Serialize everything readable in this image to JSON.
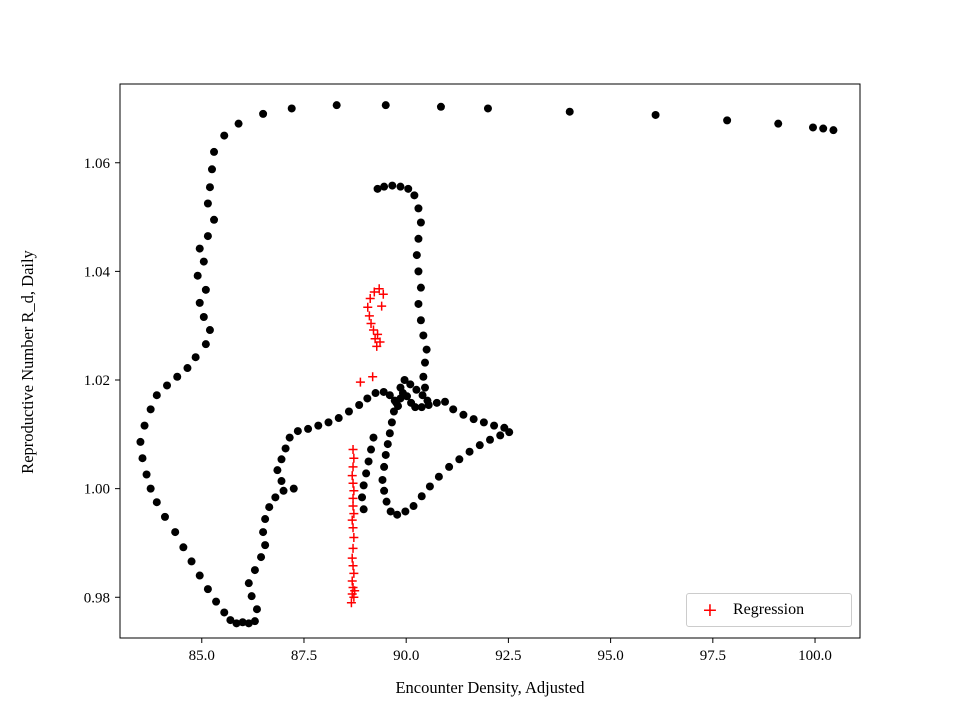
{
  "figure": {
    "background": "#ffffff"
  },
  "chart_data": {
    "type": "scatter",
    "title": "",
    "xlabel": "Encounter Density, Adjusted",
    "ylabel": "Reproductive Number R_d, Daily",
    "xlim": [
      83.0,
      101.1
    ],
    "ylim": [
      0.9725,
      1.0745
    ],
    "xticks": [
      85.0,
      87.5,
      90.0,
      92.5,
      95.0,
      97.5,
      100.0
    ],
    "xtick_labels": [
      "85.0",
      "87.5",
      "90.0",
      "92.5",
      "95.0",
      "97.5",
      "100.0"
    ],
    "yticks": [
      0.98,
      1.0,
      1.02,
      1.04,
      1.06
    ],
    "ytick_labels": [
      "0.98",
      "1.00",
      "1.02",
      "1.04",
      "1.06"
    ],
    "grid": false,
    "legend": {
      "position": "lower right",
      "entries": [
        "Regression"
      ]
    },
    "series": [
      {
        "name": "",
        "marker": "circle",
        "color": "#000000",
        "points": [
          [
            85.3,
            1.062
          ],
          [
            85.55,
            1.065
          ],
          [
            85.9,
            1.0672
          ],
          [
            86.5,
            1.069
          ],
          [
            87.2,
            1.07
          ],
          [
            88.3,
            1.0706
          ],
          [
            89.5,
            1.0706
          ],
          [
            90.85,
            1.0703
          ],
          [
            92.0,
            1.07
          ],
          [
            94.0,
            1.0694
          ],
          [
            96.1,
            1.0688
          ],
          [
            97.85,
            1.0678
          ],
          [
            99.1,
            1.0672
          ],
          [
            99.95,
            1.0665
          ],
          [
            100.2,
            1.0663
          ],
          [
            100.45,
            1.066
          ],
          [
            85.25,
            1.0588
          ],
          [
            85.2,
            1.0555
          ],
          [
            85.15,
            1.0525
          ],
          [
            85.3,
            1.0495
          ],
          [
            85.15,
            1.0465
          ],
          [
            84.95,
            1.0442
          ],
          [
            85.05,
            1.0418
          ],
          [
            84.9,
            1.0392
          ],
          [
            85.1,
            1.0366
          ],
          [
            84.95,
            1.0342
          ],
          [
            85.05,
            1.0316
          ],
          [
            85.2,
            1.0292
          ],
          [
            85.1,
            1.0266
          ],
          [
            84.85,
            1.0242
          ],
          [
            84.65,
            1.0222
          ],
          [
            84.4,
            1.0206
          ],
          [
            84.15,
            1.019
          ],
          [
            83.9,
            1.0172
          ],
          [
            83.75,
            1.0146
          ],
          [
            83.6,
            1.0116
          ],
          [
            83.5,
            1.0086
          ],
          [
            83.55,
            1.0056
          ],
          [
            83.65,
            1.0026
          ],
          [
            83.75,
            1.0
          ],
          [
            83.9,
            0.9975
          ],
          [
            84.1,
            0.9948
          ],
          [
            84.35,
            0.992
          ],
          [
            84.55,
            0.9892
          ],
          [
            84.75,
            0.9866
          ],
          [
            84.95,
            0.984
          ],
          [
            85.15,
            0.9815
          ],
          [
            85.35,
            0.9792
          ],
          [
            85.55,
            0.9772
          ],
          [
            85.7,
            0.9758
          ],
          [
            85.85,
            0.9752
          ],
          [
            86.0,
            0.9754
          ],
          [
            86.15,
            0.9752
          ],
          [
            86.3,
            0.9756
          ],
          [
            86.35,
            0.9778
          ],
          [
            86.22,
            0.9802
          ],
          [
            86.15,
            0.9826
          ],
          [
            86.3,
            0.985
          ],
          [
            86.45,
            0.9874
          ],
          [
            86.55,
            0.9896
          ],
          [
            86.5,
            0.992
          ],
          [
            86.55,
            0.9944
          ],
          [
            86.65,
            0.9966
          ],
          [
            86.8,
            0.9984
          ],
          [
            87.0,
            0.9996
          ],
          [
            87.25,
            1.0
          ],
          [
            86.95,
            1.0014
          ],
          [
            86.85,
            1.0034
          ],
          [
            86.95,
            1.0054
          ],
          [
            87.05,
            1.0074
          ],
          [
            87.15,
            1.0094
          ],
          [
            87.35,
            1.0106
          ],
          [
            87.6,
            1.011
          ],
          [
            87.85,
            1.0116
          ],
          [
            88.1,
            1.0122
          ],
          [
            88.35,
            1.013
          ],
          [
            88.6,
            1.0142
          ],
          [
            88.85,
            1.0154
          ],
          [
            89.05,
            1.0166
          ],
          [
            89.25,
            1.0176
          ],
          [
            89.45,
            1.0178
          ],
          [
            89.6,
            1.0172
          ],
          [
            89.72,
            1.0162
          ],
          [
            89.8,
            1.0152
          ],
          [
            89.86,
            1.0166
          ],
          [
            89.92,
            1.0176
          ],
          [
            90.02,
            1.017
          ],
          [
            90.12,
            1.0158
          ],
          [
            90.22,
            1.015
          ],
          [
            90.38,
            1.015
          ],
          [
            90.55,
            1.0154
          ],
          [
            90.75,
            1.0158
          ],
          [
            90.95,
            1.016
          ],
          [
            91.15,
            1.0146
          ],
          [
            91.4,
            1.0136
          ],
          [
            91.65,
            1.0128
          ],
          [
            91.9,
            1.0122
          ],
          [
            92.15,
            1.0116
          ],
          [
            92.4,
            1.0112
          ],
          [
            92.52,
            1.0104
          ],
          [
            92.3,
            1.0098
          ],
          [
            92.05,
            1.009
          ],
          [
            91.8,
            1.008
          ],
          [
            91.55,
            1.0068
          ],
          [
            91.3,
            1.0054
          ],
          [
            91.05,
            1.004
          ],
          [
            90.8,
            1.0022
          ],
          [
            90.58,
            1.0004
          ],
          [
            90.38,
            0.9986
          ],
          [
            90.18,
            0.9968
          ],
          [
            89.98,
            0.9958
          ],
          [
            89.78,
            0.9952
          ],
          [
            89.62,
            0.9958
          ],
          [
            89.52,
            0.9976
          ],
          [
            89.46,
            0.9996
          ],
          [
            89.42,
            1.0016
          ],
          [
            89.46,
            1.004
          ],
          [
            89.5,
            1.0062
          ],
          [
            89.55,
            1.0082
          ],
          [
            89.6,
            1.0102
          ],
          [
            89.65,
            1.0122
          ],
          [
            89.7,
            1.0142
          ],
          [
            89.76,
            1.0158
          ],
          [
            89.2,
            1.0094
          ],
          [
            89.14,
            1.0072
          ],
          [
            89.08,
            1.005
          ],
          [
            89.02,
            1.0028
          ],
          [
            88.96,
            1.0006
          ],
          [
            88.92,
            0.9984
          ],
          [
            88.96,
            0.9962
          ],
          [
            89.86,
            1.0186
          ],
          [
            89.96,
            1.02
          ],
          [
            90.1,
            1.0192
          ],
          [
            90.25,
            1.0182
          ],
          [
            90.4,
            1.0172
          ],
          [
            90.52,
            1.0162
          ],
          [
            90.46,
            1.0186
          ],
          [
            90.42,
            1.0206
          ],
          [
            90.46,
            1.0232
          ],
          [
            90.5,
            1.0256
          ],
          [
            90.42,
            1.0282
          ],
          [
            90.36,
            1.031
          ],
          [
            90.3,
            1.034
          ],
          [
            90.36,
            1.037
          ],
          [
            90.3,
            1.04
          ],
          [
            90.26,
            1.043
          ],
          [
            90.3,
            1.046
          ],
          [
            90.36,
            1.049
          ],
          [
            90.3,
            1.0516
          ],
          [
            90.2,
            1.054
          ],
          [
            90.05,
            1.0552
          ],
          [
            89.86,
            1.0556
          ],
          [
            89.66,
            1.0558
          ],
          [
            89.46,
            1.0556
          ],
          [
            89.3,
            1.0552
          ]
        ]
      },
      {
        "name": "Regression",
        "marker": "plus",
        "color": "#ff0000",
        "points": [
          [
            88.66,
            0.979
          ],
          [
            88.72,
            0.98
          ],
          [
            88.68,
            0.9806
          ],
          [
            88.74,
            0.9812
          ],
          [
            88.7,
            0.9818
          ],
          [
            88.68,
            0.983
          ],
          [
            88.72,
            0.9844
          ],
          [
            88.7,
            0.9858
          ],
          [
            88.68,
            0.9872
          ],
          [
            88.7,
            0.989
          ],
          [
            88.72,
            0.991
          ],
          [
            88.7,
            0.9928
          ],
          [
            88.68,
            0.9942
          ],
          [
            88.72,
            0.9954
          ],
          [
            88.7,
            0.9968
          ],
          [
            88.7,
            0.9982
          ],
          [
            88.72,
            0.9996
          ],
          [
            88.7,
            1.001
          ],
          [
            88.68,
            1.0024
          ],
          [
            88.7,
            1.004
          ],
          [
            88.72,
            1.0056
          ],
          [
            88.7,
            1.0072
          ],
          [
            88.88,
            1.0196
          ],
          [
            89.18,
            1.0206
          ],
          [
            89.28,
            1.0262
          ],
          [
            89.36,
            1.027
          ],
          [
            89.24,
            1.0276
          ],
          [
            89.3,
            1.0284
          ],
          [
            89.2,
            1.0292
          ],
          [
            89.14,
            1.0304
          ],
          [
            89.1,
            1.0318
          ],
          [
            89.06,
            1.0334
          ],
          [
            89.12,
            1.035
          ],
          [
            89.22,
            1.0362
          ],
          [
            89.34,
            1.0368
          ],
          [
            89.44,
            1.0358
          ],
          [
            89.4,
            1.0336
          ]
        ]
      }
    ]
  }
}
